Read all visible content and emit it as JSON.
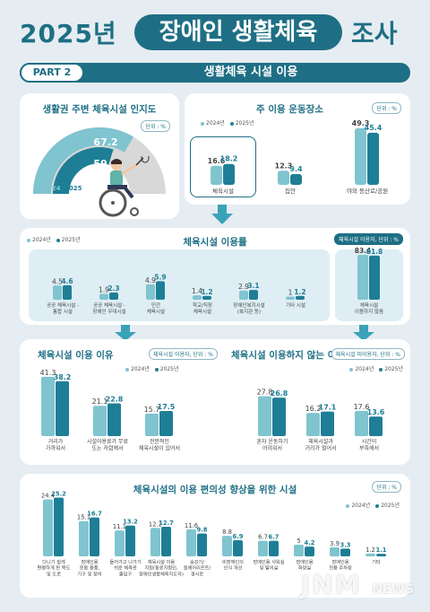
{
  "header": {
    "year": "2025년",
    "pill": "장애인 생활체육",
    "tail": "조사"
  },
  "part": {
    "label": "PART 2",
    "title": "생활체육 시설 이용"
  },
  "colors": {
    "y2024": "#7fc4cf",
    "y2025": "#1e7e96",
    "accent": "#1e6f85"
  },
  "legend": {
    "y2024": "2024년",
    "y2025": "2025년"
  },
  "recognition": {
    "title": "생활권 주변 체육시설 인지도",
    "unit": "단위 : %",
    "year_2024": "2024",
    "year_2025": "2025"
  },
  "exercise_place": {
    "title": "주 이용 운동장소",
    "unit": "단위 : %"
  },
  "usage_rate": {
    "title": "체육시설 이용률",
    "unit": "체육시설 이용자, 단위 : %"
  },
  "reasons_use": {
    "title": "체육시설 이용 이유",
    "unit": "체육시설 이용자, 단위 : %"
  },
  "reasons_not": {
    "title": "체육시설 이용하지 않는 이유",
    "unit": "체육시설 미이용자, 단위 : %"
  },
  "improvement": {
    "title": "체육시설의 이용 편의성 향상을 위한 시설",
    "unit": "단위 : %"
  },
  "watermark": {
    "brand": "JNM",
    "suffix": "NEWS"
  },
  "chart_data": [
    {
      "id": "recognition",
      "type": "pie",
      "title": "생활권 주변 체육시설 인지도",
      "series": [
        {
          "name": "2024",
          "values": [
            67.2
          ]
        },
        {
          "name": "2025",
          "values": [
            59.7
          ]
        }
      ]
    },
    {
      "id": "exercise_place",
      "type": "bar",
      "title": "주 이용 운동장소",
      "categories": [
        "체육시설",
        "집안",
        "야외 등산로/공원"
      ],
      "series": [
        {
          "name": "2024년",
          "values": [
            16.6,
            12.3,
            49.3
          ]
        },
        {
          "name": "2025년",
          "values": [
            18.2,
            9.4,
            45.4
          ]
        }
      ]
    },
    {
      "id": "usage_rate",
      "type": "bar",
      "title": "체육시설 이용률",
      "categories": [
        [
          "공공 체육시설 -",
          "통합 시설"
        ],
        [
          "공공 체육시설 -",
          "장애인 우대시설"
        ],
        [
          "민간",
          "체육시설"
        ],
        [
          "학교/직장",
          "체육시설"
        ],
        [
          "장애인복지시설",
          "(복지관 등)"
        ],
        [
          "기타 시설"
        ],
        [
          "체육시설",
          "이용하지 않음"
        ]
      ],
      "series": [
        {
          "name": "2024년",
          "values": [
            4.5,
            1.9,
            4.9,
            1.4,
            2.9,
            1.0,
            83.4
          ]
        },
        {
          "name": "2025년",
          "values": [
            4.6,
            2.3,
            5.9,
            1.2,
            3.1,
            1.2,
            81.8
          ]
        }
      ]
    },
    {
      "id": "reasons_use",
      "type": "bar",
      "title": "체육시설 이용 이유",
      "categories": [
        [
          "거리가",
          "가까워서"
        ],
        [
          "시설이용료가 무료",
          "또는 저렴해서"
        ],
        [
          "전문적인",
          "체육시설이 있어서"
        ]
      ],
      "series": [
        {
          "name": "2024년",
          "values": [
            41.3,
            21.1,
            15.7
          ]
        },
        {
          "name": "2025년",
          "values": [
            38.2,
            22.8,
            17.5
          ]
        }
      ]
    },
    {
      "id": "reasons_not",
      "type": "bar",
      "title": "체육시설 이용하지 않는 이유",
      "categories": [
        [
          "혼자 운동하기",
          "어려워서"
        ],
        [
          "체육시설과",
          "거리가 멀어서"
        ],
        [
          "시간이",
          "부족해서"
        ]
      ],
      "series": [
        {
          "name": "2024년",
          "values": [
            27.8,
            16.2,
            17.6
          ]
        },
        {
          "name": "2025년",
          "values": [
            26.8,
            17.1,
            13.6
          ]
        }
      ]
    },
    {
      "id": "improvement",
      "type": "bar",
      "title": "체육시설의 이용 편의성 향상을 위한 시설",
      "categories": [
        [
          "다니기 쉽게",
          "편평하게 된 복도",
          "및 도로"
        ],
        [
          "장애인용",
          "운동 용품,",
          "기구 및 장비"
        ],
        [
          "들어가고 나가기",
          "쉬운 체육관",
          "출입구"
        ],
        [
          "체육시설 이용",
          "지원(동료지원인,",
          "장애인생활체육지도자)"
        ],
        [
          "승강기/",
          "휠체어리프트/",
          "경사로"
        ],
        [
          "비장애인의",
          "인식 개선"
        ],
        [
          "장애인용 샤워실",
          "및 탈의실"
        ],
        [
          "장애인용",
          "화장실"
        ],
        [
          "장애인용",
          "전용 주차장"
        ],
        [
          "기타"
        ]
      ],
      "series": [
        {
          "name": "2024년",
          "values": [
            24.4,
            15.1,
            11.1,
            12.2,
            11.6,
            8.8,
            6.7,
            5.0,
            3.9,
            1.2
          ]
        },
        {
          "name": "2025년",
          "values": [
            25.2,
            16.7,
            13.2,
            12.7,
            9.8,
            6.9,
            6.7,
            4.2,
            3.3,
            1.1
          ]
        }
      ]
    }
  ]
}
